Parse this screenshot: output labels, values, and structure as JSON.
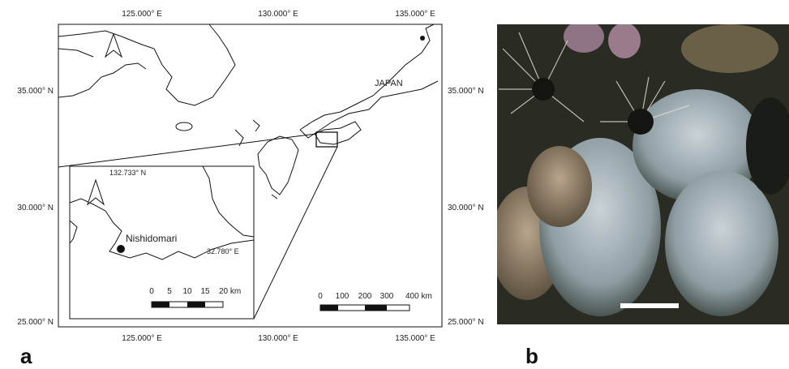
{
  "panel_a": {
    "label": "a",
    "map": {
      "top_ticks": [
        "125.000° E",
        "130.000° E",
        "135.000° E"
      ],
      "bottom_ticks": [
        "125.000° E",
        "130.000° E",
        "135.000° E"
      ],
      "left_ticks": [
        "35.000° N",
        "30.000° N",
        "25.000° N"
      ],
      "right_ticks": [
        "35.000° N",
        "30.000° N",
        "25.000° N"
      ],
      "country_label": "JAPAN",
      "scale_bar": [
        "0",
        "100",
        "200",
        "300",
        "400 km"
      ]
    },
    "inset": {
      "lon_label": "132.733° N",
      "lat_label": "32.780° E",
      "site": "Nishidomari",
      "scale_bar": [
        "0",
        "5",
        "10",
        "15",
        "20 km"
      ]
    }
  },
  "panel_b": {
    "label": "b"
  }
}
